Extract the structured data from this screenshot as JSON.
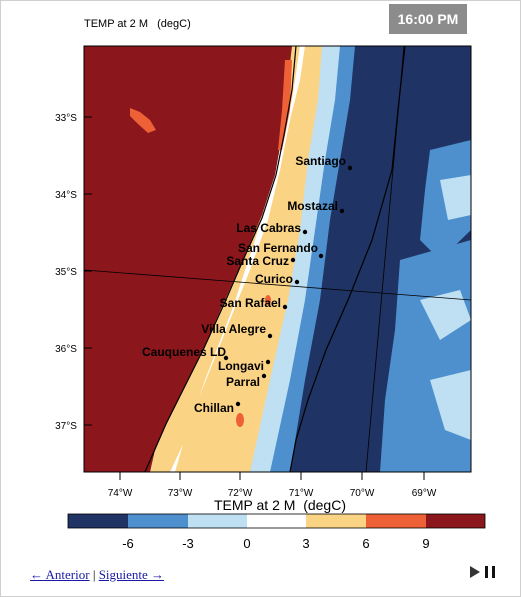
{
  "header": {
    "title": "TEMP at 2 M   (degC)",
    "time": "16:00 PM"
  },
  "map": {
    "lat_labels": [
      "33°S",
      "34°S",
      "35°S",
      "36°S",
      "37°S"
    ],
    "lon_labels": [
      "74°W",
      "73°W",
      "72°W",
      "71°W",
      "70°W",
      "69°W"
    ],
    "cities": [
      "Santiago",
      "Mostazal",
      "Las Cabras",
      "San Fernando",
      "Santa Cruz",
      "Curico",
      "San Rafael",
      "Villa Alegre",
      "Cauquenes LD",
      "Longavi",
      "Parral",
      "Chillan"
    ]
  },
  "legend": {
    "title": "TEMP at 2 M  (degC)",
    "tick_labels": [
      "-6",
      "-3",
      "0",
      "3",
      "6",
      "9"
    ],
    "colors": [
      "#1f3464",
      "#4e8fce",
      "#bfe0f3",
      "#ffffff",
      "#fbd385",
      "#ee6035",
      "#8b161c"
    ]
  },
  "nav": {
    "prev": "← Anterior",
    "separator": "|",
    "next": "Siguiente →"
  },
  "colors": {
    "ocean": "#8b161c",
    "warm": "#fbd385",
    "orange": "#ee6035",
    "cold": "#bfe0f3",
    "mid_blue": "#4e8fce",
    "dark_blue": "#1f3464"
  }
}
